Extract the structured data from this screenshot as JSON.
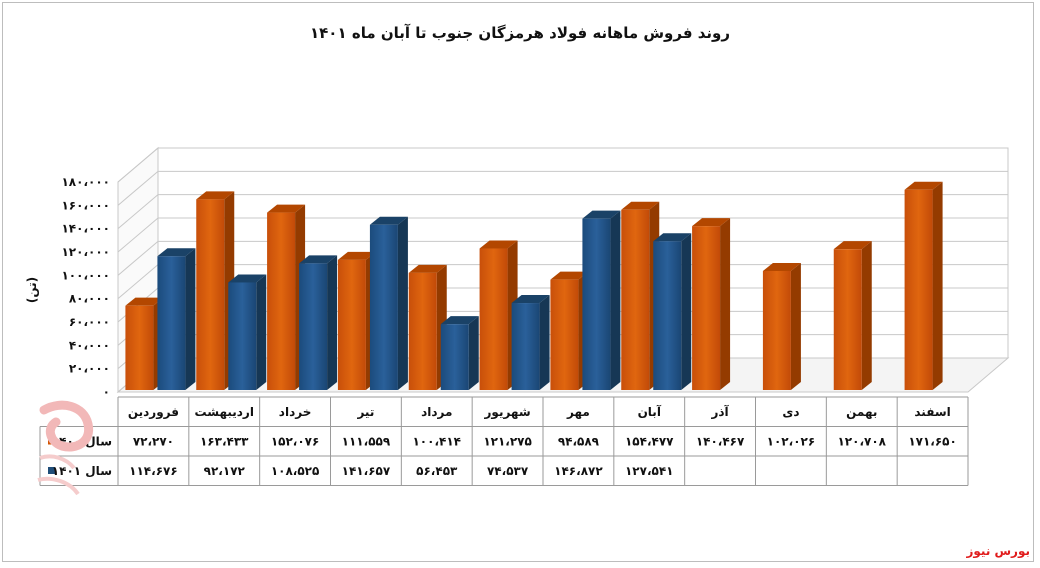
{
  "chart_data": {
    "type": "bar",
    "title": "روند فروش ماهانه فولاد هرمزگان جنوب تا آبان ماه ۱۴۰۱",
    "ylabel": "(تن)",
    "ylim": [
      0,
      180000
    ],
    "y_ticks": [
      "۰",
      "۲۰،۰۰۰",
      "۴۰،۰۰۰",
      "۶۰،۰۰۰",
      "۸۰،۰۰۰",
      "۱۰۰،۰۰۰",
      "۱۲۰،۰۰۰",
      "۱۴۰،۰۰۰",
      "۱۶۰،۰۰۰",
      "۱۸۰،۰۰۰"
    ],
    "categories": [
      "فروردین",
      "اردیبهشت",
      "خرداد",
      "تیر",
      "مرداد",
      "شهریور",
      "مهر",
      "آبان",
      "آذر",
      "دی",
      "بهمن",
      "اسفند"
    ],
    "series": [
      {
        "name": "سال ۱۴۰۰",
        "color": "#d35400",
        "values": [
          72270,
          163433,
          152076,
          111559,
          100414,
          121275,
          94589,
          154477,
          140467,
          102026,
          120708,
          171650
        ],
        "labels": [
          "۷۲،۲۷۰",
          "۱۶۳،۴۳۳",
          "۱۵۲،۰۷۶",
          "۱۱۱،۵۵۹",
          "۱۰۰،۴۱۴",
          "۱۲۱،۲۷۵",
          "۹۴،۵۸۹",
          "۱۵۴،۴۷۷",
          "۱۴۰،۴۶۷",
          "۱۰۲،۰۲۶",
          "۱۲۰،۷۰۸",
          "۱۷۱،۶۵۰"
        ]
      },
      {
        "name": "سال ۱۴۰۱",
        "color": "#1f4e79",
        "values": [
          114676,
          92172,
          108525,
          141657,
          56453,
          74537,
          146872,
          127541,
          null,
          null,
          null,
          null
        ],
        "labels": [
          "۱۱۴،۶۷۶",
          "۹۲،۱۷۲",
          "۱۰۸،۵۲۵",
          "۱۴۱،۶۵۷",
          "۵۶،۴۵۳",
          "۷۴،۵۳۷",
          "۱۴۶،۸۷۲",
          "۱۲۷،۵۴۱",
          "",
          "",
          "",
          ""
        ]
      }
    ],
    "grid": true,
    "legend": "data-table"
  },
  "brand": "بورس نیوز"
}
